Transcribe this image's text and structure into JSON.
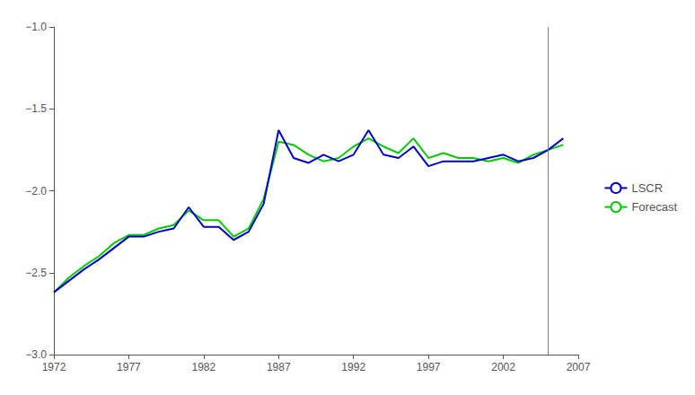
{
  "chart_data": {
    "type": "line",
    "x": [
      1972,
      1973,
      1974,
      1975,
      1976,
      1977,
      1978,
      1979,
      1980,
      1981,
      1982,
      1983,
      1984,
      1985,
      1986,
      1987,
      1988,
      1989,
      1990,
      1991,
      1992,
      1993,
      1994,
      1995,
      1996,
      1997,
      1998,
      1999,
      2000,
      2001,
      2002,
      2003,
      2004,
      2005,
      2006
    ],
    "series": [
      {
        "name": "LSCR",
        "color": "#0000cc",
        "values": [
          -2.62,
          -2.55,
          -2.48,
          -2.42,
          -2.35,
          -2.28,
          -2.28,
          -2.25,
          -2.23,
          -2.1,
          -2.22,
          -2.22,
          -2.3,
          -2.25,
          -2.08,
          -1.63,
          -1.8,
          -1.83,
          -1.78,
          -1.82,
          -1.78,
          -1.63,
          -1.78,
          -1.8,
          -1.73,
          -1.85,
          -1.82,
          -1.82,
          -1.82,
          -1.8,
          -1.78,
          -1.82,
          -1.8,
          -1.75,
          -1.68
        ]
      },
      {
        "name": "Forecast",
        "color": "#00cc00",
        "values": [
          -2.62,
          -2.53,
          -2.46,
          -2.4,
          -2.32,
          -2.27,
          -2.27,
          -2.23,
          -2.21,
          -2.12,
          -2.18,
          -2.18,
          -2.28,
          -2.23,
          -2.05,
          -1.7,
          -1.72,
          -1.78,
          -1.82,
          -1.8,
          -1.73,
          -1.68,
          -1.73,
          -1.77,
          -1.68,
          -1.8,
          -1.77,
          -1.8,
          -1.8,
          -1.82,
          -1.8,
          -1.83,
          -1.78,
          -1.75,
          -1.72
        ]
      }
    ],
    "vlines": [
      {
        "x": 2005,
        "color": "#808080"
      }
    ],
    "xlim": [
      1972,
      2007
    ],
    "xticks": [
      1972,
      1977,
      1982,
      1987,
      1992,
      1997,
      2002,
      2007
    ],
    "ylim": [
      -3.0,
      -1.0
    ],
    "yticks": [
      {
        "value": -3.0,
        "label": "−3.0"
      },
      {
        "value": -2.5,
        "label": "−2.5"
      },
      {
        "value": -2.0,
        "label": "−2.0"
      },
      {
        "value": -1.5,
        "label": "−1.5"
      },
      {
        "value": -1.0,
        "label": "−1.0"
      }
    ],
    "grid": false,
    "legend": "right"
  }
}
